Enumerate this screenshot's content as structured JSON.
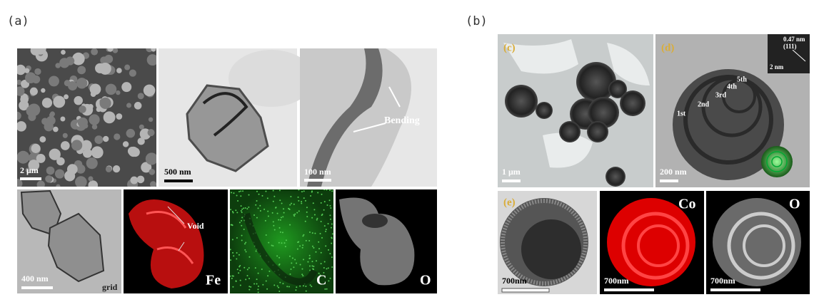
{
  "figure_labels": {
    "a": "(a)",
    "b": "(b)"
  },
  "panel_a": {
    "top": [
      {
        "scale": "2 μm"
      },
      {
        "scale": "500 nm"
      },
      {
        "scale": "100 nm",
        "annotation": "Bending"
      }
    ],
    "bottom": [
      {
        "scale": "400 nm",
        "annotation": "grid"
      },
      {
        "annotation": "Void",
        "element": "Fe"
      },
      {
        "element": "C"
      },
      {
        "element": "O"
      }
    ]
  },
  "panel_b": {
    "c": {
      "label": "(c)",
      "scale": "1 μm"
    },
    "d": {
      "label": "(d)",
      "scale": "200 nm",
      "inset": {
        "spacing": "0.47 nm",
        "plane": "(111)",
        "scale": "2 nm"
      },
      "shells": [
        "5th",
        "4th",
        "3rd",
        "2nd",
        "1st"
      ]
    },
    "e": {
      "label": "(e)",
      "scale": "700nm"
    },
    "maps": [
      {
        "element": "Co",
        "scale": "700nm"
      },
      {
        "element": "O",
        "scale": "700nm"
      }
    ]
  }
}
